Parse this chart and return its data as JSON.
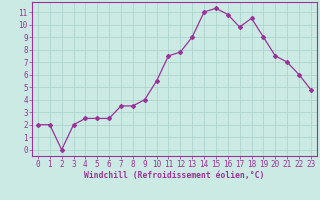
{
  "x": [
    0,
    1,
    2,
    3,
    4,
    5,
    6,
    7,
    8,
    9,
    10,
    11,
    12,
    13,
    14,
    15,
    16,
    17,
    18,
    19,
    20,
    21,
    22,
    23
  ],
  "y": [
    2,
    2,
    0,
    2,
    2.5,
    2.5,
    2.5,
    3.5,
    3.5,
    4,
    5.5,
    7.5,
    7.8,
    9,
    11,
    11.3,
    10.8,
    9.8,
    10.5,
    9,
    7.5,
    7,
    6,
    4.8
  ],
  "line_color": "#993399",
  "marker": "D",
  "marker_size": 2.0,
  "bg_color": "#cceae4",
  "grid_color": "#b0d8d0",
  "xlabel": "Windchill (Refroidissement éolien,°C)",
  "xlabel_color": "#993399",
  "tick_color": "#993399",
  "spine_color": "#993399",
  "xlim": [
    -0.5,
    23.5
  ],
  "ylim": [
    -0.5,
    11.8
  ],
  "yticks": [
    0,
    1,
    2,
    3,
    4,
    5,
    6,
    7,
    8,
    9,
    10,
    11
  ],
  "xticks": [
    0,
    1,
    2,
    3,
    4,
    5,
    6,
    7,
    8,
    9,
    10,
    11,
    12,
    13,
    14,
    15,
    16,
    17,
    18,
    19,
    20,
    21,
    22,
    23
  ],
  "tick_fontsize": 5.5,
  "xlabel_fontsize": 5.8
}
